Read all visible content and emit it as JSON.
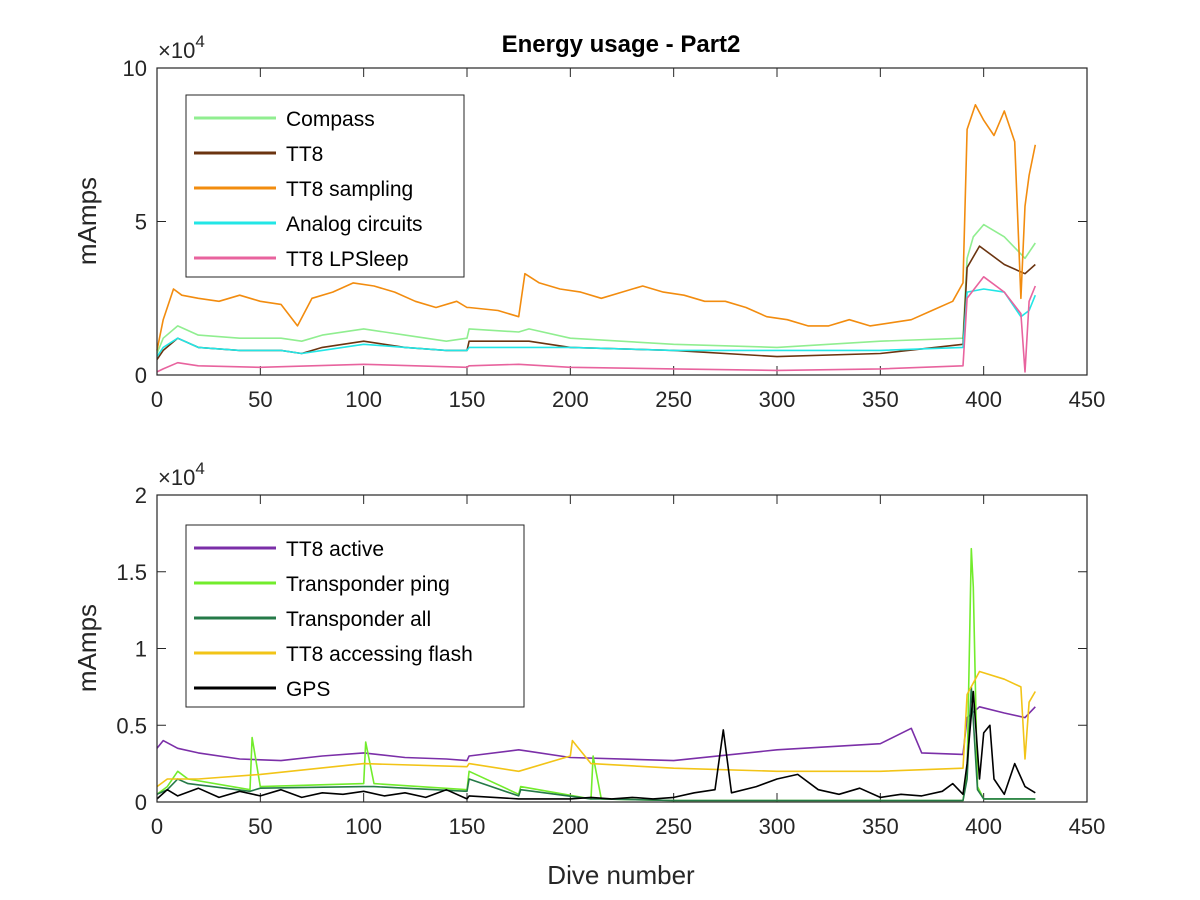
{
  "chart_data": [
    {
      "type": "line",
      "title": "Energy usage - Part2",
      "xlabel": "",
      "ylabel": "mAmps",
      "exponent_label": "×10",
      "exponent_power": "4",
      "xlim": [
        0,
        450
      ],
      "ylim": [
        0,
        100000
      ],
      "xticks": [
        0,
        50,
        100,
        150,
        200,
        250,
        300,
        350,
        400,
        450
      ],
      "xtick_labels": [
        "0",
        "50",
        "100",
        "150",
        "200",
        "250",
        "300",
        "350",
        "400",
        "450"
      ],
      "yticks": [
        0,
        50000,
        100000
      ],
      "ytick_labels": [
        "0",
        "5",
        "10"
      ],
      "legend_position": "top-left",
      "series": [
        {
          "name": "Compass",
          "color": "#90ee90",
          "x": [
            0,
            3,
            10,
            20,
            40,
            60,
            70,
            80,
            100,
            120,
            140,
            150,
            151,
            175,
            180,
            200,
            250,
            300,
            350,
            390,
            392,
            395,
            400,
            410,
            420,
            425
          ],
          "y": [
            7000,
            12000,
            16000,
            13000,
            12000,
            12000,
            11000,
            13000,
            15000,
            13000,
            11000,
            12000,
            15000,
            14000,
            15000,
            12000,
            10000,
            9000,
            11000,
            12000,
            38000,
            45000,
            49000,
            45000,
            38000,
            43000
          ]
        },
        {
          "name": "TT8",
          "color": "#6b3410",
          "x": [
            0,
            3,
            10,
            20,
            40,
            60,
            70,
            80,
            100,
            120,
            140,
            150,
            151,
            175,
            180,
            200,
            250,
            300,
            350,
            390,
            392,
            398,
            410,
            420,
            425
          ],
          "y": [
            5000,
            8000,
            12000,
            9000,
            8000,
            8000,
            7000,
            9000,
            11000,
            9000,
            8000,
            8000,
            11000,
            11000,
            11000,
            9000,
            8000,
            6000,
            7000,
            10000,
            35000,
            42000,
            36000,
            33000,
            36000
          ]
        },
        {
          "name": "TT8 sampling",
          "color": "#f28c0f",
          "x": [
            0,
            3,
            8,
            12,
            20,
            30,
            40,
            50,
            60,
            68,
            75,
            85,
            95,
            105,
            115,
            125,
            135,
            145,
            150,
            151,
            165,
            175,
            178,
            185,
            195,
            205,
            215,
            225,
            235,
            245,
            255,
            265,
            275,
            285,
            295,
            305,
            315,
            325,
            335,
            345,
            355,
            365,
            375,
            385,
            390,
            392,
            396,
            400,
            405,
            410,
            415,
            418,
            420,
            422,
            425
          ],
          "y": [
            8000,
            18000,
            28000,
            26000,
            25000,
            24000,
            26000,
            24000,
            23000,
            16000,
            25000,
            27000,
            30000,
            29000,
            27000,
            24000,
            22000,
            24000,
            22000,
            22000,
            21000,
            19000,
            33000,
            30000,
            28000,
            27000,
            25000,
            27000,
            29000,
            27000,
            26000,
            24000,
            24000,
            22000,
            19000,
            18000,
            16000,
            16000,
            18000,
            16000,
            17000,
            18000,
            21000,
            24000,
            30000,
            80000,
            88000,
            83000,
            78000,
            86000,
            76000,
            25000,
            55000,
            65000,
            75000
          ]
        },
        {
          "name": "Analog circuits",
          "color": "#22e6e6",
          "x": [
            0,
            3,
            10,
            20,
            40,
            60,
            70,
            80,
            100,
            120,
            140,
            150,
            151,
            175,
            180,
            200,
            250,
            300,
            350,
            390,
            392,
            400,
            410,
            418,
            422,
            425
          ],
          "y": [
            6000,
            9000,
            12000,
            9000,
            8000,
            8000,
            7000,
            8000,
            10000,
            9000,
            8000,
            8000,
            9000,
            9000,
            9000,
            9000,
            8000,
            8000,
            8000,
            9000,
            27000,
            28000,
            27000,
            19000,
            21000,
            26000
          ]
        },
        {
          "name": "TT8 LPSleep",
          "color": "#e8639e",
          "x": [
            0,
            3,
            10,
            20,
            50,
            100,
            150,
            151,
            175,
            200,
            250,
            300,
            350,
            390,
            392,
            400,
            410,
            418,
            420,
            422,
            425
          ],
          "y": [
            1000,
            2000,
            4000,
            3000,
            2500,
            3500,
            2500,
            3000,
            3500,
            2500,
            2000,
            1500,
            2000,
            3000,
            25000,
            32000,
            27000,
            20000,
            1000,
            24000,
            29000
          ]
        }
      ]
    },
    {
      "type": "line",
      "title": "",
      "xlabel": "Dive number",
      "ylabel": "mAmps",
      "exponent_label": "×10",
      "exponent_power": "4",
      "xlim": [
        0,
        450
      ],
      "ylim": [
        0,
        20000
      ],
      "xticks": [
        0,
        50,
        100,
        150,
        200,
        250,
        300,
        350,
        400,
        450
      ],
      "xtick_labels": [
        "0",
        "50",
        "100",
        "150",
        "200",
        "250",
        "300",
        "350",
        "400",
        "450"
      ],
      "yticks": [
        0,
        5000,
        10000,
        15000,
        20000
      ],
      "ytick_labels": [
        "0",
        "0.5",
        "1",
        "1.5",
        "2"
      ],
      "legend_position": "top-left",
      "series": [
        {
          "name": "TT8 active",
          "color": "#7b2fa8",
          "x": [
            0,
            3,
            10,
            20,
            40,
            60,
            80,
            100,
            120,
            140,
            150,
            151,
            175,
            180,
            200,
            250,
            300,
            350,
            365,
            370,
            390,
            392,
            398,
            410,
            420,
            425
          ],
          "y": [
            3500,
            4000,
            3500,
            3200,
            2800,
            2700,
            3000,
            3200,
            2900,
            2800,
            2700,
            3000,
            3400,
            3300,
            2900,
            2700,
            3400,
            3800,
            4800,
            3200,
            3100,
            5500,
            6200,
            5800,
            5500,
            6200
          ]
        },
        {
          "name": "Transponder ping",
          "color": "#72ec2c",
          "x": [
            0,
            5,
            10,
            15,
            45,
            46,
            50,
            100,
            101,
            105,
            150,
            151,
            175,
            176,
            210,
            211,
            215,
            250,
            300,
            350,
            390,
            392,
            394,
            395,
            397,
            400,
            425
          ],
          "y": [
            500,
            1000,
            2000,
            1500,
            800,
            4200,
            1000,
            1200,
            3900,
            1200,
            800,
            2000,
            500,
            1000,
            200,
            3000,
            200,
            100,
            100,
            100,
            100,
            2000,
            16500,
            14000,
            1000,
            200,
            200
          ]
        },
        {
          "name": "Transponder all",
          "color": "#257a48",
          "x": [
            0,
            5,
            10,
            15,
            45,
            50,
            100,
            105,
            150,
            151,
            175,
            176,
            210,
            215,
            250,
            300,
            350,
            390,
            392,
            394,
            397,
            400,
            425
          ],
          "y": [
            500,
            800,
            1500,
            1200,
            700,
            900,
            1000,
            1000,
            700,
            1500,
            400,
            800,
            200,
            200,
            100,
            100,
            100,
            100,
            1500,
            7500,
            800,
            200,
            200
          ]
        },
        {
          "name": "TT8 accessing flash",
          "color": "#f2c417",
          "x": [
            0,
            5,
            20,
            50,
            100,
            150,
            151,
            175,
            200,
            201,
            210,
            250,
            300,
            350,
            390,
            392,
            398,
            410,
            418,
            420,
            422,
            425
          ],
          "y": [
            1000,
            1500,
            1500,
            1800,
            2500,
            2300,
            2500,
            2000,
            3000,
            4000,
            2500,
            2200,
            2000,
            2000,
            2200,
            7000,
            8500,
            8000,
            7500,
            2800,
            6500,
            7200
          ]
        },
        {
          "name": "GPS",
          "color": "#000000",
          "x": [
            0,
            5,
            10,
            20,
            30,
            40,
            50,
            60,
            70,
            80,
            90,
            100,
            110,
            120,
            130,
            140,
            150,
            151,
            175,
            200,
            210,
            220,
            230,
            240,
            250,
            260,
            270,
            274,
            278,
            290,
            300,
            310,
            320,
            330,
            340,
            350,
            360,
            370,
            380,
            385,
            390,
            392,
            395,
            398,
            400,
            403,
            405,
            410,
            415,
            420,
            425
          ],
          "y": [
            200,
            800,
            400,
            900,
            300,
            700,
            400,
            800,
            300,
            600,
            500,
            700,
            400,
            600,
            300,
            800,
            200,
            400,
            200,
            200,
            300,
            200,
            300,
            200,
            300,
            600,
            800,
            4700,
            600,
            1000,
            1500,
            1800,
            800,
            500,
            900,
            300,
            500,
            400,
            700,
            1200,
            500,
            2500,
            7200,
            1500,
            4500,
            5000,
            1500,
            500,
            2500,
            1000,
            600
          ]
        }
      ]
    }
  ]
}
